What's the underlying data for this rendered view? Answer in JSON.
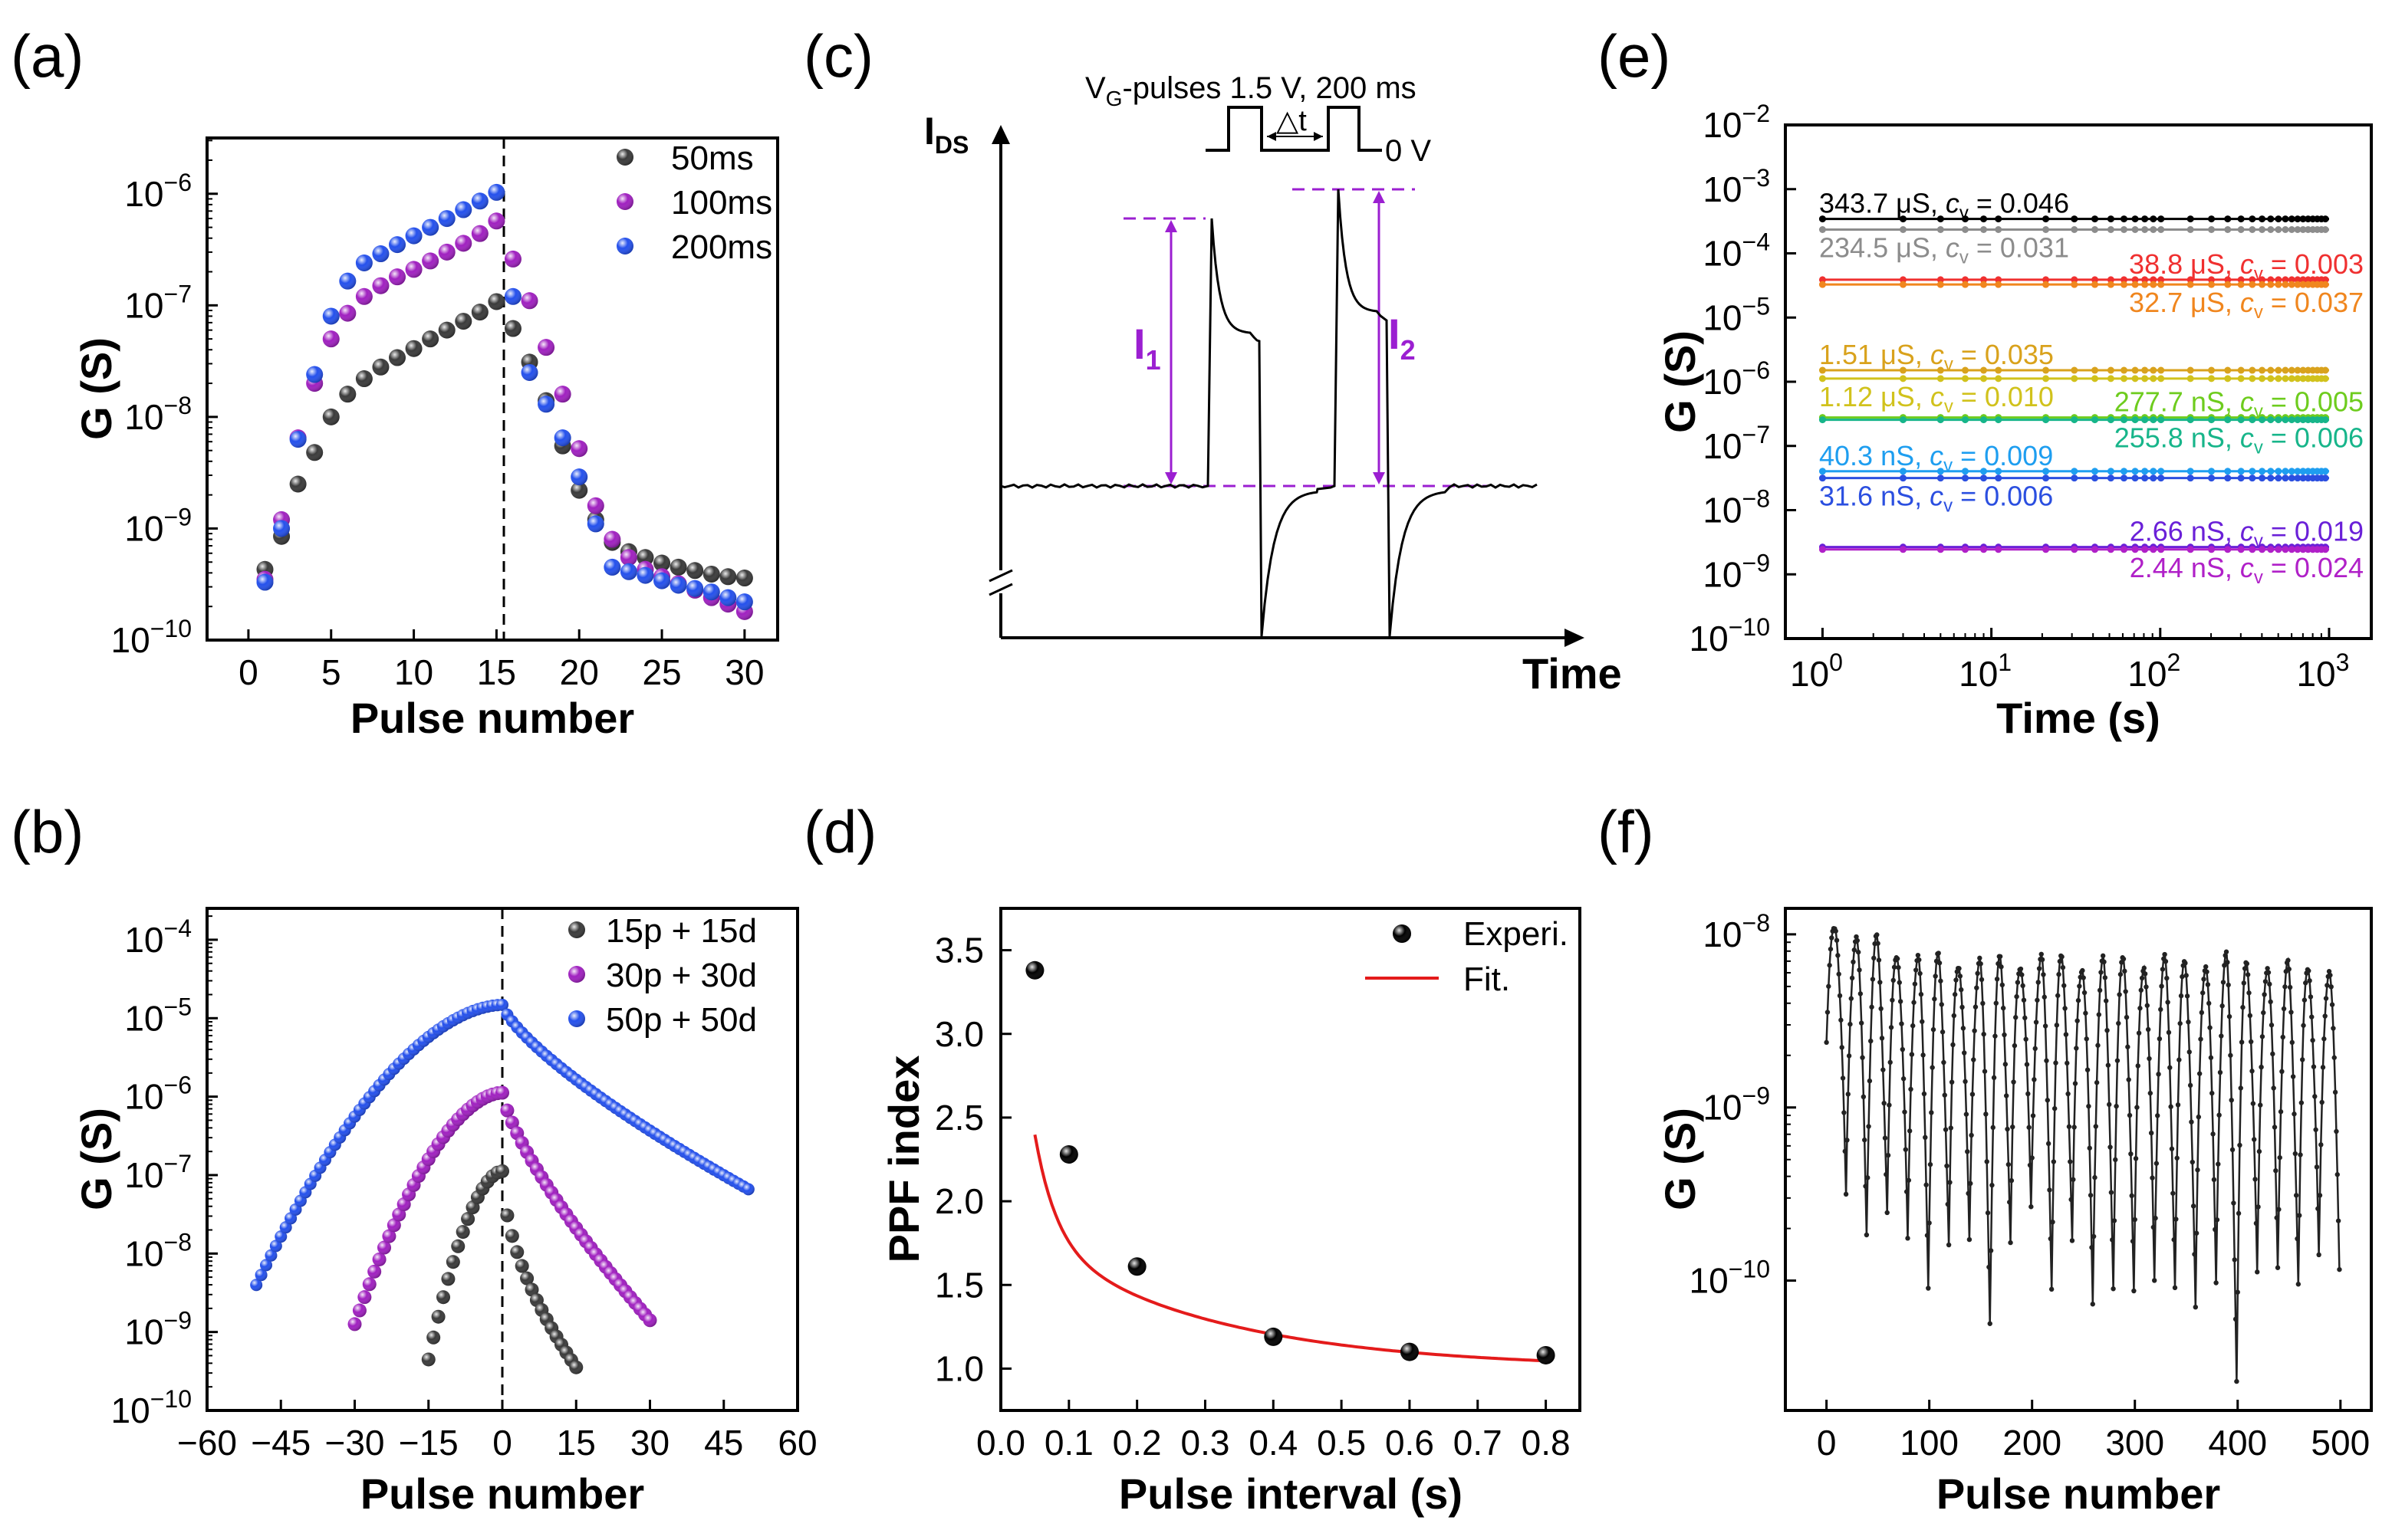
{
  "chart_data": [
    {
      "id": "a",
      "panel_label": "(a)",
      "type": "scatter",
      "xlabel": "Pulse number",
      "ylabel": "G (S)",
      "xlim": [
        -2.5,
        32
      ],
      "ylim_log10": [
        -10,
        -5.5
      ],
      "xticks": [
        0,
        5,
        10,
        15,
        20,
        25,
        30
      ],
      "xtick_labels": [
        "0",
        "5",
        "10",
        "15",
        "20",
        "25",
        "30"
      ],
      "ytick_exps": [
        -10,
        -9,
        -8,
        -7,
        -6
      ],
      "ytick_labels": [
        "10",
        "10",
        "10",
        "10",
        "10"
      ],
      "ytick_sups": [
        "−10",
        "−9",
        "−8",
        "−7",
        "−6"
      ],
      "vline_x": 15,
      "legend_position": "top-right",
      "series": [
        {
          "name": "50ms",
          "color": "#3a3a3a",
          "x": [
            1,
            2,
            3,
            4,
            5,
            6,
            7,
            8,
            9,
            10,
            11,
            12,
            13,
            14,
            15,
            16,
            17,
            18,
            19,
            20,
            21,
            22,
            23,
            24,
            25,
            26,
            27,
            28,
            29,
            30
          ],
          "y": [
            4.3e-10,
            8.5e-10,
            2.5e-09,
            4.8e-09,
            1e-08,
            1.6e-08,
            2.2e-08,
            2.8e-08,
            3.4e-08,
            4.1e-08,
            5e-08,
            6e-08,
            7.2e-08,
            8.7e-08,
            1.08e-07,
            6.2e-08,
            3.1e-08,
            1.4e-08,
            5.5e-09,
            2.2e-09,
            1.2e-09,
            7.5e-10,
            6.2e-10,
            5.5e-10,
            4.9e-10,
            4.5e-10,
            4.2e-10,
            3.9e-10,
            3.7e-10,
            3.6e-10
          ]
        },
        {
          "name": "100ms",
          "color": "#a020c0",
          "x": [
            1,
            2,
            3,
            4,
            5,
            6,
            7,
            8,
            9,
            10,
            11,
            12,
            13,
            14,
            15,
            16,
            17,
            18,
            19,
            20,
            21,
            22,
            23,
            24,
            25,
            26,
            27,
            28,
            29,
            30
          ],
          "y": [
            3.5e-10,
            1.2e-09,
            6.5e-09,
            2e-08,
            5e-08,
            8.5e-08,
            1.2e-07,
            1.5e-07,
            1.8e-07,
            2.1e-07,
            2.5e-07,
            3e-07,
            3.6e-07,
            4.4e-07,
            5.7e-07,
            2.6e-07,
            1.1e-07,
            4.2e-08,
            1.6e-08,
            5.2e-09,
            1.6e-09,
            8e-10,
            5.5e-10,
            4.3e-10,
            3.7e-10,
            3.2e-10,
            2.8e-10,
            2.4e-10,
            2.1e-10,
            1.8e-10
          ]
        },
        {
          "name": "200ms",
          "color": "#2450ec",
          "x": [
            1,
            2,
            3,
            4,
            5,
            6,
            7,
            8,
            9,
            10,
            11,
            12,
            13,
            14,
            15,
            16,
            17,
            18,
            19,
            20,
            21,
            22,
            23,
            24,
            25,
            26,
            27,
            28,
            29,
            30
          ],
          "y": [
            3.3e-10,
            1e-09,
            6.3e-09,
            2.4e-08,
            8e-08,
            1.65e-07,
            2.4e-07,
            2.9e-07,
            3.5e-07,
            4.2e-07,
            5e-07,
            6e-07,
            7.2e-07,
            8.6e-07,
            1.03e-06,
            1.2e-07,
            2.5e-08,
            1.3e-08,
            6.5e-09,
            2.9e-09,
            1.1e-09,
            4.5e-10,
            4.1e-10,
            3.8e-10,
            3.4e-10,
            3.1e-10,
            2.9e-10,
            2.7e-10,
            2.4e-10,
            2.2e-10
          ]
        }
      ]
    },
    {
      "id": "b",
      "panel_label": "(b)",
      "type": "scatter",
      "xlabel": "Pulse number",
      "ylabel": "G (S)",
      "xlim": [
        -60,
        60
      ],
      "ylim_log10": [
        -10,
        -3.6
      ],
      "xticks": [
        -60,
        -45,
        -30,
        -15,
        0,
        15,
        30,
        45,
        60
      ],
      "xtick_labels": [
        "−60",
        "−45",
        "−30",
        "−15",
        "0",
        "15",
        "30",
        "45",
        "60"
      ],
      "ytick_exps": [
        -10,
        -9,
        -8,
        -7,
        -6,
        -5,
        -4
      ],
      "ytick_labels": [
        "10",
        "10",
        "10",
        "10",
        "10",
        "10",
        "10"
      ],
      "ytick_sups": [
        "−10",
        "−9",
        "−8",
        "−7",
        "−6",
        "−5",
        "−4"
      ],
      "vline_x": 0,
      "legend_position": "top-right",
      "series": [
        {
          "name": "15p + 15d",
          "color": "#3a3a3a",
          "n": 15,
          "log_start": -9.35,
          "log_peak": -6.95,
          "log_end": -9.45
        },
        {
          "name": "30p + 30d",
          "color": "#a020c0",
          "n": 30,
          "log_start": -8.9,
          "log_peak": -5.95,
          "log_end": -8.85
        },
        {
          "name": "50p + 50d",
          "color": "#2450ec",
          "n": 50,
          "log_start": -8.4,
          "log_peak": -4.83,
          "log_end": -7.18
        }
      ]
    },
    {
      "id": "c",
      "panel_label": "(c)",
      "type": "line",
      "ylabel": "I",
      "ylabel_sub": "DS",
      "xlabel": "Time",
      "pulse_label": "V",
      "pulse_label_sub": "G",
      "pulse_label_rest": "-pulses  1.5 V, 200 ms",
      "delta_label": "△t",
      "zero_label": "0 V",
      "i1_label": "I",
      "i1_sub": "1",
      "i2_label": "I",
      "i2_sub": "2",
      "i1_relative": 1.0,
      "i2_relative": 1.11,
      "note": "schematic trace, arbitrary units"
    },
    {
      "id": "d",
      "panel_label": "(d)",
      "type": "scatter",
      "xlabel": "Pulse interval (s)",
      "ylabel": "PPF index",
      "xlim": [
        0.0,
        0.85
      ],
      "ylim": [
        0.75,
        3.75
      ],
      "xticks": [
        0.0,
        0.1,
        0.2,
        0.3,
        0.4,
        0.5,
        0.6,
        0.7,
        0.8
      ],
      "xtick_labels": [
        "0.0",
        "0.1",
        "0.2",
        "0.3",
        "0.4",
        "0.5",
        "0.6",
        "0.7",
        "0.8"
      ],
      "yticks": [
        1.0,
        1.5,
        2.0,
        2.5,
        3.0,
        3.5
      ],
      "ytick_labels": [
        "1.0",
        "1.5",
        "2.0",
        "2.5",
        "3.0",
        "3.5"
      ],
      "legend_position": "top-right",
      "series": [
        {
          "name": "Experi.",
          "color": "#000000",
          "kind": "points",
          "x": [
            0.05,
            0.1,
            0.2,
            0.4,
            0.6,
            0.8
          ],
          "y": [
            3.38,
            2.28,
            1.61,
            1.19,
            1.1,
            1.08
          ]
        },
        {
          "name": "Fit.",
          "color": "#e41b1b",
          "kind": "line",
          "model": "1.0 + A1*exp(-x/t1) + A2*exp(-x/t2)",
          "A1": 3.1,
          "t1": 0.032,
          "A2": 0.9,
          "t2": 0.27
        }
      ]
    },
    {
      "id": "e",
      "panel_label": "(e)",
      "type": "line",
      "xlabel": "Time (s)",
      "ylabel": "G (S)",
      "xlim_log10": [
        -0.22,
        3.25
      ],
      "ylim_log10": [
        -10,
        -2
      ],
      "xtick_exps": [
        0,
        1,
        2,
        3
      ],
      "xtick_labels": [
        "10",
        "10",
        "10",
        "10"
      ],
      "xtick_sups": [
        "0",
        "1",
        "2",
        "3"
      ],
      "ytick_exps": [
        -10,
        -9,
        -8,
        -7,
        -6,
        -5,
        -4,
        -3,
        -2
      ],
      "ytick_labels": [
        "10",
        "10",
        "10",
        "10",
        "10",
        "10",
        "10",
        "10",
        "10"
      ],
      "ytick_sups": [
        "−10",
        "−9",
        "−8",
        "−7",
        "−6",
        "−5",
        "−4",
        "−3",
        "−2"
      ],
      "series": [
        {
          "value": 0.0003437,
          "color": "#000000",
          "text": "343.7 μS, ",
          "cv": "0.046",
          "label_side": "left-above"
        },
        {
          "value": 0.0002345,
          "color": "#8c8c8c",
          "text": "234.5 μS, ",
          "cv": "0.031",
          "label_side": "left-below"
        },
        {
          "value": 3.88e-05,
          "color": "#f03030",
          "text": "38.8 μS, ",
          "cv": "0.003",
          "label_side": "right-above"
        },
        {
          "value": 3.27e-05,
          "color": "#f0861e",
          "text": "32.7 μS, ",
          "cv": "0.037",
          "label_side": "right-below"
        },
        {
          "value": 1.51e-06,
          "color": "#d9a21c",
          "text": "1.51 μS, ",
          "cv": "0.035",
          "label_side": "left-above"
        },
        {
          "value": 1.12e-06,
          "color": "#d1c21c",
          "text": "1.12 μS, ",
          "cv": "0.010",
          "label_side": "left-below"
        },
        {
          "value": 2.777e-07,
          "color": "#6ecc1e",
          "text": "277.7 nS, ",
          "cv": "0.005",
          "label_side": "right-above"
        },
        {
          "value": 2.558e-07,
          "color": "#17b58a",
          "text": "255.8 nS, ",
          "cv": "0.006",
          "label_side": "right-below"
        },
        {
          "value": 4.03e-08,
          "color": "#1e9ef0",
          "text": "40.3 nS, ",
          "cv": "0.009",
          "label_side": "left-above"
        },
        {
          "value": 3.16e-08,
          "color": "#2b4fe0",
          "text": "31.6 nS, ",
          "cv": "0.006",
          "label_side": "left-below"
        },
        {
          "value": 2.66e-09,
          "color": "#6a20d8",
          "text": "2.66 nS, ",
          "cv": "0.019",
          "label_side": "right-above"
        },
        {
          "value": 2.44e-09,
          "color": "#b020c8",
          "text": "2.44 nS, ",
          "cv": "0.024",
          "label_side": "right-below"
        }
      ],
      "cv_symbol": "c",
      "cv_sub": "v",
      "cv_eq": " = "
    },
    {
      "id": "f",
      "panel_label": "(f)",
      "type": "line",
      "xlabel": "Pulse number",
      "ylabel": "G (S)",
      "xlim": [
        -40,
        530
      ],
      "ylim_log10": [
        -10.75,
        -7.85
      ],
      "xticks": [
        0,
        100,
        200,
        300,
        400,
        500
      ],
      "xtick_labels": [
        "0",
        "100",
        "200",
        "300",
        "400",
        "500"
      ],
      "ytick_exps": [
        -10,
        -9,
        -8
      ],
      "ytick_labels": [
        "10",
        "10",
        "10"
      ],
      "ytick_sups": [
        "−10",
        "−9",
        "−8"
      ],
      "cycles": 25,
      "pulses_per_cycle": 20,
      "peaks_log10": [
        -7.95,
        -8.0,
        -8.05,
        -8.1,
        -8.12,
        -8.15,
        -8.15,
        -8.15,
        -8.16,
        -8.15,
        -8.14,
        -8.15,
        -8.16,
        -8.16,
        -8.15,
        -8.15,
        -8.16,
        -8.16,
        -8.15,
        -8.15,
        -8.15,
        -8.17,
        -8.2,
        -8.18,
        -8.2
      ],
      "troughs_log10": [
        -9.55,
        -9.7,
        -9.6,
        -9.8,
        -10.0,
        -9.8,
        -9.8,
        -10.2,
        -9.8,
        -9.6,
        -10.0,
        -9.8,
        -10.15,
        -10.0,
        -10.1,
        -10.0,
        -10.0,
        -10.2,
        -10.0,
        -10.55,
        -10.0,
        -9.9,
        -10.0,
        -9.9,
        -9.9
      ]
    }
  ]
}
